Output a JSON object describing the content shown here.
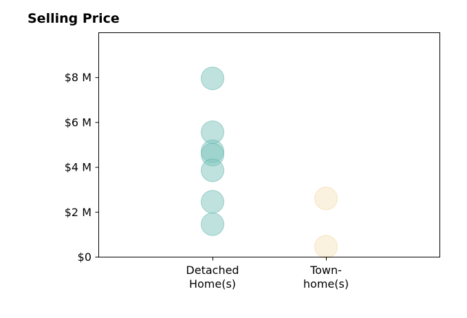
{
  "chart_data": {
    "type": "scatter",
    "title": "Selling Price",
    "xlabel": "",
    "ylabel": "",
    "categories": [
      [
        "Detached",
        "Home(s)"
      ],
      [
        "Town-",
        "home(s)"
      ]
    ],
    "ylim": [
      0,
      10
    ],
    "ytick_values": [
      0,
      2,
      4,
      6,
      8
    ],
    "ytick_labels": [
      "$0",
      "$2 M",
      "$4 M",
      "$6 M",
      "$8 M"
    ],
    "grid": false,
    "series": [
      {
        "category_index": 0,
        "color": "#7fc6bd",
        "edge_color": "#5fb3a8",
        "values": [
          7.95,
          5.55,
          4.7,
          4.55,
          3.85,
          2.45,
          1.45
        ]
      },
      {
        "category_index": 1,
        "color": "#f6e3bd",
        "edge_color": "#f0d69f",
        "values": [
          2.6,
          0.45
        ]
      }
    ]
  }
}
